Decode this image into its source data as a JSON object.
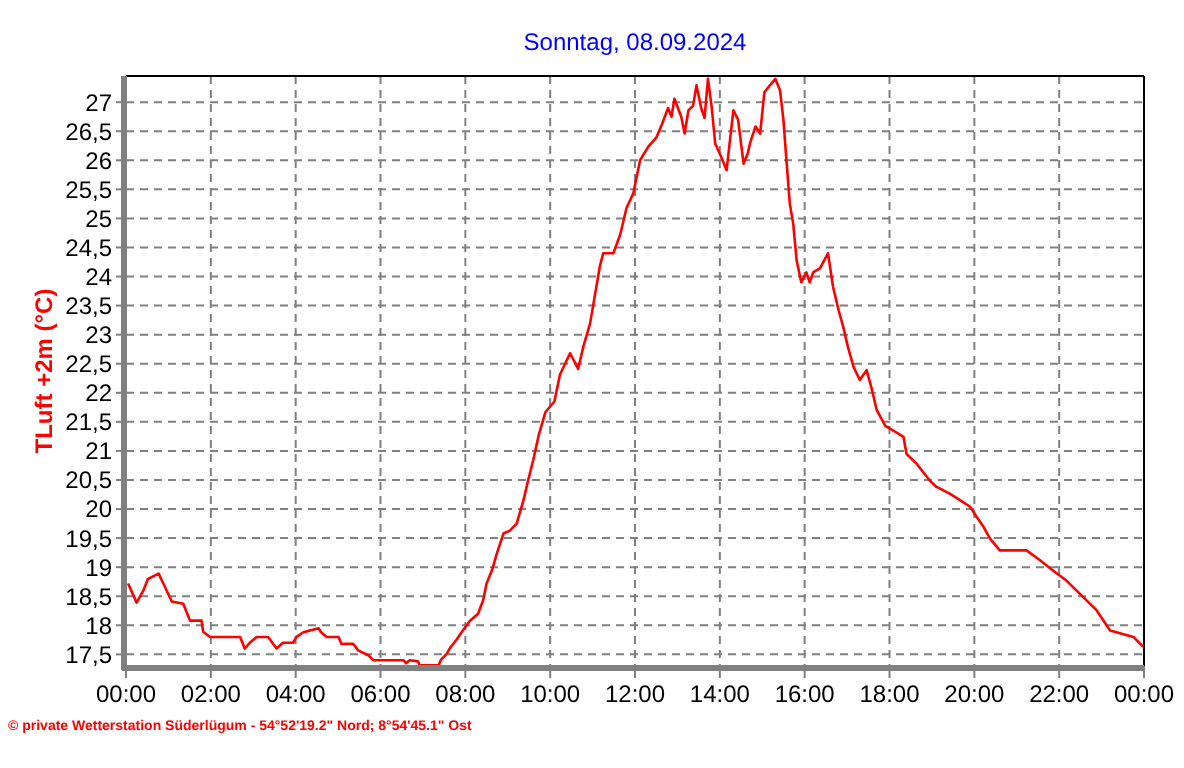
{
  "chart_data": {
    "type": "line",
    "title": "Sonntag, 08.09.2024",
    "ylabel": "TLuft +2m (°C)",
    "annotations": [
      "© private Wetterstation Süderlügum  -  54°52'19.2\" Nord; 8°54'45.1\" Ost"
    ],
    "xlim": [
      0,
      24
    ],
    "ylim": [
      17.3,
      27.45
    ],
    "xticks": [
      {
        "value": 0,
        "label": "00:00"
      },
      {
        "value": 2,
        "label": "02:00"
      },
      {
        "value": 4,
        "label": "04:00"
      },
      {
        "value": 6,
        "label": "06:00"
      },
      {
        "value": 8,
        "label": "08:00"
      },
      {
        "value": 10,
        "label": "10:00"
      },
      {
        "value": 12,
        "label": "12:00"
      },
      {
        "value": 14,
        "label": "14:00"
      },
      {
        "value": 16,
        "label": "16:00"
      },
      {
        "value": 18,
        "label": "18:00"
      },
      {
        "value": 20,
        "label": "20:00"
      },
      {
        "value": 22,
        "label": "22:00"
      },
      {
        "value": 24,
        "label": "00:00"
      }
    ],
    "yticks": [
      {
        "value": 17.5,
        "label": "17,5"
      },
      18,
      {
        "value": 18.5,
        "label": "18,5"
      },
      19,
      {
        "value": 19.5,
        "label": "19,5"
      },
      20,
      {
        "value": 20.5,
        "label": "20,5"
      },
      21,
      {
        "value": 21.5,
        "label": "21,5"
      },
      22,
      {
        "value": 22.5,
        "label": "22,5"
      },
      23,
      {
        "value": 23.5,
        "label": "23,5"
      },
      24,
      {
        "value": 24.5,
        "label": "24,5"
      },
      25,
      {
        "value": 25.5,
        "label": "25,5"
      },
      26,
      {
        "value": 26.5,
        "label": "26,5"
      },
      27
    ],
    "grid": true,
    "line_style": "solid",
    "series": [
      {
        "color": "#ff0000",
        "x": [
          0.05,
          0.25,
          0.41,
          0.52,
          0.77,
          0.88,
          1.08,
          1.35,
          1.51,
          1.78,
          1.82,
          1.98,
          2.69,
          2.8,
          2.92,
          3.08,
          3.35,
          3.55,
          3.7,
          3.94,
          4.02,
          4.18,
          4.54,
          4.6,
          4.73,
          5.01,
          5.08,
          5.36,
          5.47,
          5.72,
          5.83,
          6.54,
          6.6,
          6.69,
          6.88,
          6.93,
          7.37,
          7.42,
          7.56,
          7.63,
          7.8,
          7.92,
          8.11,
          8.3,
          8.42,
          8.5,
          8.63,
          8.74,
          8.9,
          9.05,
          9.21,
          9.37,
          9.48,
          9.6,
          9.73,
          9.89,
          10.1,
          10.23,
          10.39,
          10.47,
          10.66,
          10.78,
          10.94,
          11.02,
          11.17,
          11.25,
          11.49,
          11.65,
          11.8,
          11.96,
          12.12,
          12.31,
          12.51,
          12.64,
          12.78,
          12.86,
          12.93,
          13.09,
          13.17,
          13.26,
          13.37,
          13.45,
          13.56,
          13.64,
          13.72,
          13.81,
          13.89,
          14.03,
          14.16,
          14.24,
          14.32,
          14.43,
          14.56,
          14.66,
          14.71,
          14.84,
          14.95,
          15.05,
          15.18,
          15.31,
          15.42,
          15.5,
          15.57,
          15.65,
          15.73,
          15.81,
          15.92,
          16.04,
          16.12,
          16.2,
          16.36,
          16.55,
          16.67,
          16.8,
          16.91,
          17.02,
          17.15,
          17.3,
          17.46,
          17.57,
          17.7,
          17.9,
          18.0,
          18.33,
          18.4,
          18.64,
          18.8,
          18.95,
          19.11,
          19.43,
          19.67,
          19.9,
          20.06,
          20.22,
          20.37,
          20.6,
          21.23,
          21.55,
          21.86,
          22.17,
          22.49,
          22.88,
          23.2,
          23.75,
          23.98
        ],
        "values": [
          18.72,
          18.39,
          18.6,
          18.8,
          18.89,
          18.72,
          18.41,
          18.37,
          18.08,
          18.08,
          17.89,
          17.8,
          17.8,
          17.6,
          17.7,
          17.8,
          17.8,
          17.6,
          17.7,
          17.7,
          17.8,
          17.88,
          17.95,
          17.88,
          17.8,
          17.8,
          17.68,
          17.68,
          17.57,
          17.48,
          17.4,
          17.4,
          17.35,
          17.4,
          17.38,
          17.31,
          17.31,
          17.4,
          17.51,
          17.6,
          17.76,
          17.89,
          18.08,
          18.2,
          18.43,
          18.72,
          18.95,
          19.23,
          19.58,
          19.63,
          19.75,
          20.15,
          20.49,
          20.84,
          21.27,
          21.67,
          21.85,
          22.31,
          22.56,
          22.68,
          22.41,
          22.79,
          23.19,
          23.53,
          24.17,
          24.4,
          24.4,
          24.72,
          25.18,
          25.43,
          26.0,
          26.23,
          26.4,
          26.63,
          26.9,
          26.75,
          27.06,
          26.75,
          26.46,
          26.86,
          26.94,
          27.29,
          26.9,
          26.73,
          27.4,
          26.9,
          26.29,
          26.06,
          25.83,
          26.35,
          26.86,
          26.7,
          25.94,
          26.12,
          26.29,
          26.58,
          26.46,
          27.17,
          27.29,
          27.4,
          27.2,
          26.69,
          26.0,
          25.25,
          24.91,
          24.28,
          23.9,
          24.07,
          23.9,
          24.07,
          24.14,
          24.4,
          23.82,
          23.42,
          23.13,
          22.79,
          22.45,
          22.22,
          22.39,
          22.1,
          21.7,
          21.43,
          21.39,
          21.24,
          20.95,
          20.78,
          20.63,
          20.49,
          20.38,
          20.26,
          20.15,
          20.04,
          19.86,
          19.69,
          19.49,
          19.29,
          19.29,
          19.12,
          18.94,
          18.77,
          18.54,
          18.26,
          17.91,
          17.8,
          17.63
        ]
      }
    ]
  }
}
